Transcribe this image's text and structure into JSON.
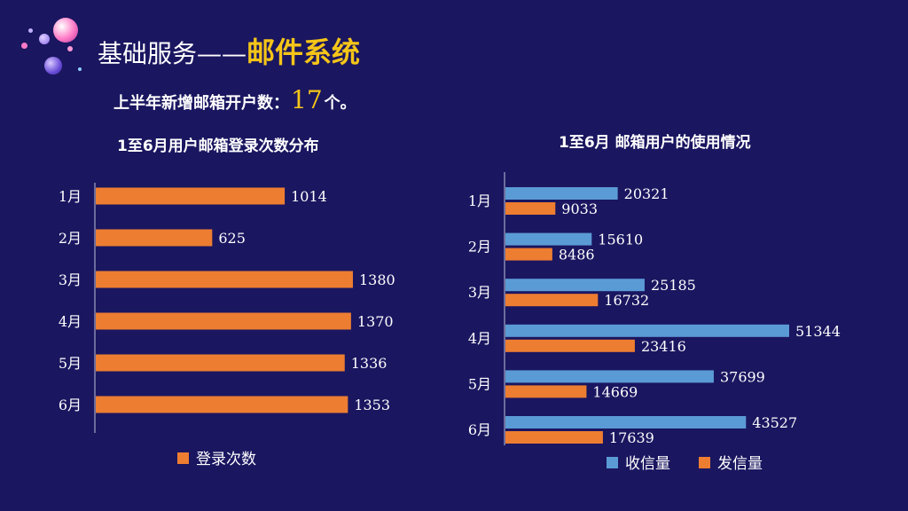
{
  "title": {
    "main": "基础服务——",
    "highlight": "邮件系统"
  },
  "summary": {
    "label": "上半年新增邮箱开户数：",
    "value": "17",
    "suffix": "个。"
  },
  "colors": {
    "background": "#1a1660",
    "orange": "#ed7d31",
    "blue": "#5b9bd5",
    "gold": "#f5c518"
  },
  "chart_data": [
    {
      "type": "bar",
      "orientation": "horizontal",
      "title": "1至6月用户邮箱登录次数分布",
      "categories": [
        "1月",
        "2月",
        "3月",
        "4月",
        "5月",
        "6月"
      ],
      "series": [
        {
          "name": "登录次数",
          "color": "#ed7d31",
          "values": [
            1014,
            625,
            1380,
            1370,
            1336,
            1353
          ]
        }
      ],
      "xlim": [
        0,
        1500
      ],
      "legend": "bottom",
      "grid": false
    },
    {
      "type": "bar",
      "orientation": "horizontal",
      "title": "1至6月 邮箱用户的使用情况",
      "categories": [
        "1月",
        "2月",
        "3月",
        "4月",
        "5月",
        "6月"
      ],
      "series": [
        {
          "name": "收信量",
          "color": "#5b9bd5",
          "values": [
            20321,
            15610,
            25185,
            51344,
            37699,
            43527
          ]
        },
        {
          "name": "发信量",
          "color": "#ed7d31",
          "values": [
            9033,
            8486,
            16732,
            23416,
            14669,
            17639
          ]
        }
      ],
      "xlim": [
        0,
        60000
      ],
      "legend": "bottom",
      "grid": false
    }
  ]
}
